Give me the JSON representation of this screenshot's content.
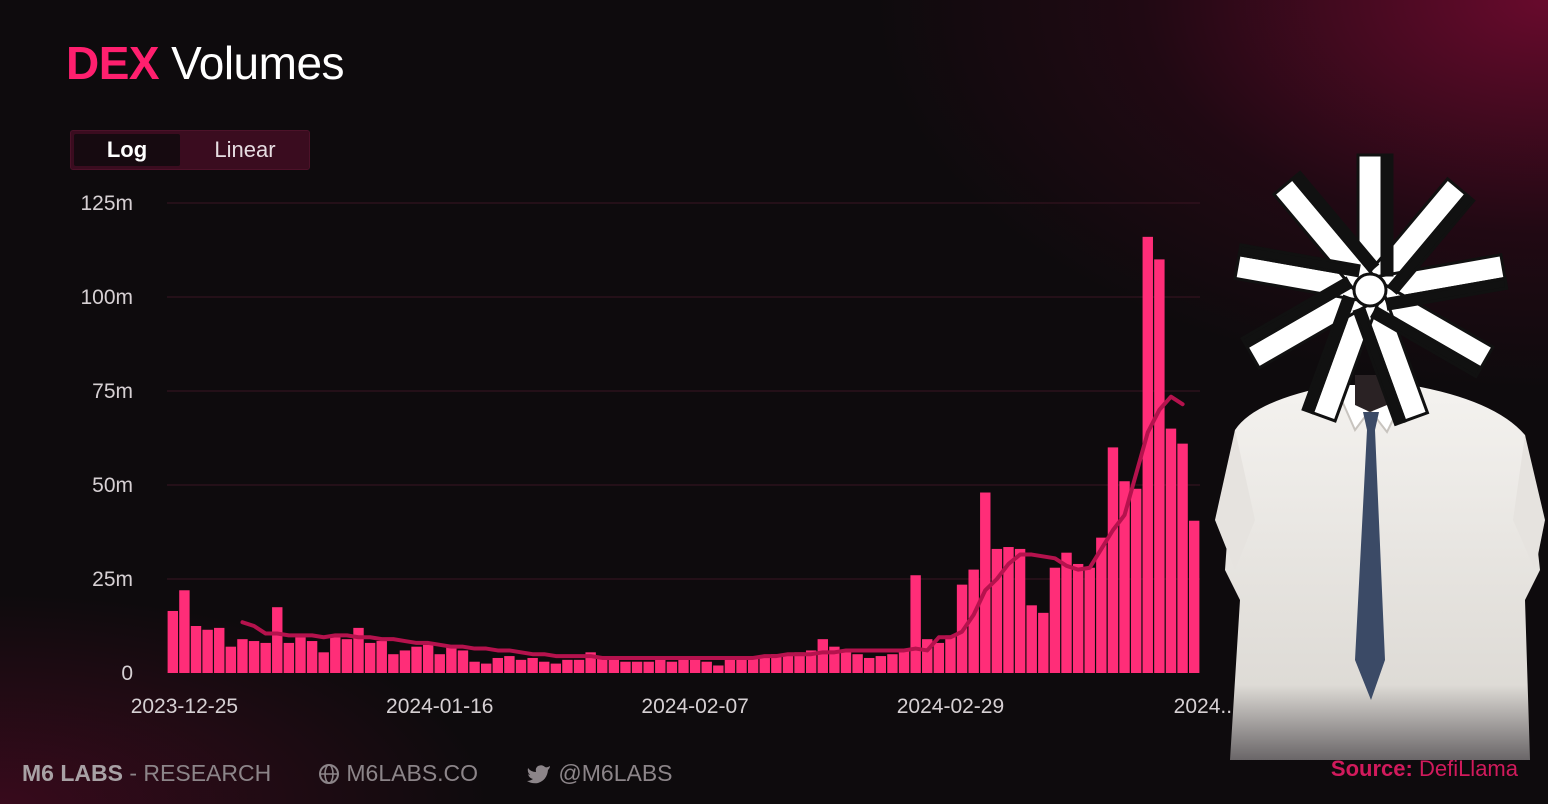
{
  "header": {
    "title_accent": "DEX",
    "title_rest": "Volumes"
  },
  "toggle": {
    "options": [
      "Log",
      "Linear"
    ],
    "selected": "Log"
  },
  "colors": {
    "accent": "#ff1f6e",
    "bar": "#ff2d78",
    "line": "#b5124d",
    "grid": "#3a1422",
    "background": "#0e0b0d"
  },
  "chart_data": {
    "type": "bar",
    "title": "DEX Volumes",
    "yticks": [
      "0",
      "25m",
      "50m",
      "75m",
      "100m",
      "125m"
    ],
    "ylim": [
      0,
      125
    ],
    "y_unit": "m",
    "xticks": [
      "2023-12-25",
      "2024-01-16",
      "2024-02-07",
      "2024-02-29",
      "2024..."
    ],
    "xtick_indices": [
      1,
      23,
      45,
      67,
      89
    ],
    "grid": true,
    "series": [
      {
        "kind": "bar",
        "values": [
          16.5,
          22,
          12.5,
          11.5,
          12,
          7,
          9,
          8.5,
          8,
          17.5,
          8,
          9.5,
          8.5,
          5.5,
          9.5,
          9,
          12,
          8,
          8.5,
          5,
          6,
          7,
          7.5,
          5,
          7,
          6,
          3,
          2.5,
          4,
          4.5,
          3.5,
          4,
          3,
          2.5,
          3.5,
          3.5,
          5.5,
          4,
          3.5,
          3,
          3,
          3,
          3.5,
          3,
          4.5,
          4,
          3,
          2,
          3.5,
          4,
          4,
          4,
          5,
          5,
          5.5,
          6,
          9,
          7,
          5.5,
          5,
          4,
          4.5,
          5,
          6,
          26,
          9,
          8,
          10,
          23.5,
          27.5,
          48,
          33,
          33.5,
          33,
          18,
          16,
          28,
          32,
          29,
          28,
          36,
          60,
          51,
          49,
          116,
          110,
          65,
          61,
          40.5
        ]
      },
      {
        "kind": "line",
        "start_index": 6,
        "values": [
          13.5,
          12.5,
          10.5,
          10.5,
          10,
          10,
          10,
          9.5,
          10,
          10,
          9.5,
          9.5,
          9,
          9,
          8.5,
          8,
          8,
          7.5,
          7,
          7,
          6.5,
          6.5,
          6,
          6,
          5.5,
          5,
          5,
          4.5,
          4.5,
          4.5,
          4.5,
          4,
          4,
          4,
          4,
          4,
          4,
          4,
          4,
          4,
          4,
          4,
          4,
          4,
          4,
          4.5,
          4.5,
          5,
          5,
          5,
          5.5,
          5.5,
          6,
          6,
          6,
          6,
          6,
          6,
          6.5,
          6,
          9.5,
          9.5,
          11,
          15.5,
          22,
          25,
          29,
          31.5,
          31.5,
          31,
          30.5,
          28.5,
          27.5,
          28,
          33,
          38,
          42,
          53,
          64,
          70,
          73.5,
          71.5
        ]
      }
    ]
  },
  "footer": {
    "brand": "M6 LABS",
    "separator": " - ",
    "brand_suffix": "RESEARCH",
    "website": "M6LABS.CO",
    "twitter": "@M6LABS"
  },
  "source": {
    "label": "Source:",
    "value": "DefiLlama"
  }
}
